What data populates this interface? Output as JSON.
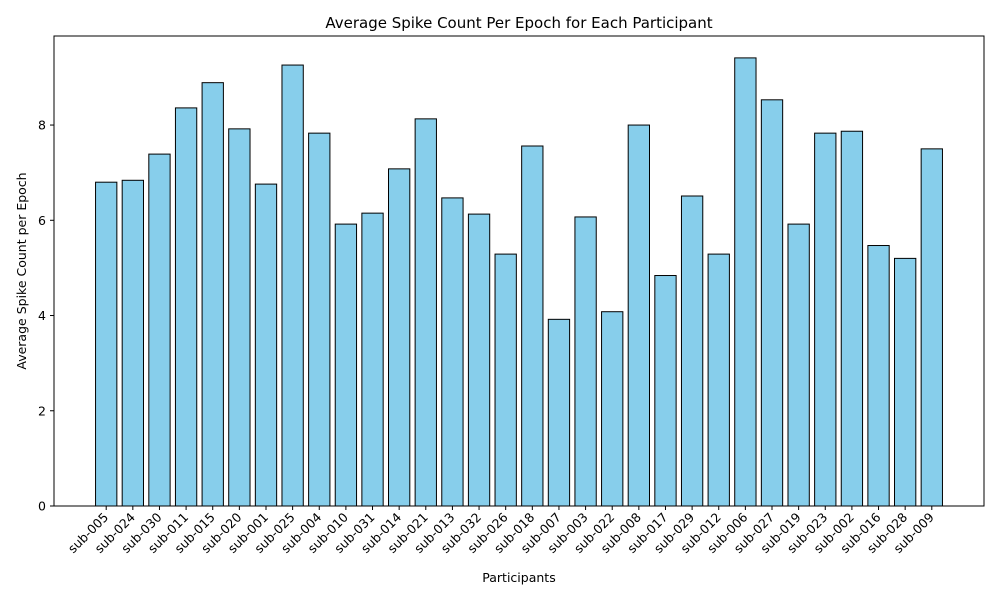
{
  "chart_data": {
    "type": "bar",
    "title": "Average Spike Count Per Epoch for Each Participant",
    "xlabel": "Participants",
    "ylabel": "Average Spike Count per Epoch",
    "ylim": [
      0,
      9.87
    ],
    "yticks": [
      0,
      2,
      4,
      6,
      8
    ],
    "ytick_labels": [
      "0",
      "2",
      "4",
      "6",
      "8"
    ],
    "grid": false,
    "legend": "none",
    "bar_color": "#87ceeb",
    "edge_color": "#000000",
    "categories": [
      "sub-005",
      "sub-024",
      "sub-030",
      "sub-011",
      "sub-015",
      "sub-020",
      "sub-001",
      "sub-025",
      "sub-004",
      "sub-010",
      "sub-031",
      "sub-014",
      "sub-021",
      "sub-013",
      "sub-032",
      "sub-026",
      "sub-018",
      "sub-007",
      "sub-003",
      "sub-022",
      "sub-008",
      "sub-017",
      "sub-029",
      "sub-012",
      "sub-006",
      "sub-027",
      "sub-019",
      "sub-023",
      "sub-002",
      "sub-016",
      "sub-028",
      "sub-009"
    ],
    "values": [
      6.8,
      6.84,
      7.39,
      8.36,
      8.89,
      7.92,
      6.76,
      9.26,
      7.83,
      5.92,
      6.15,
      7.08,
      8.13,
      6.47,
      6.13,
      5.29,
      7.56,
      3.92,
      6.07,
      4.08,
      8.0,
      4.84,
      6.51,
      5.29,
      9.41,
      8.53,
      5.92,
      7.83,
      7.87,
      5.47,
      5.2,
      7.5
    ]
  }
}
